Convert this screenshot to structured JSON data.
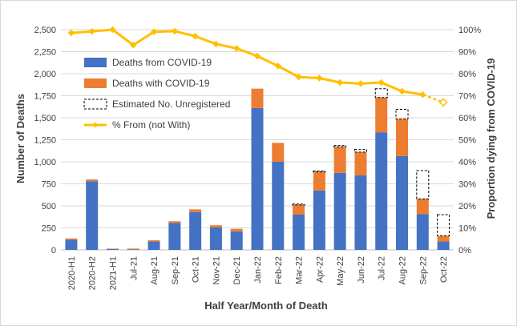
{
  "chart_data": {
    "type": "bar",
    "stacked": true,
    "xlabel": "Half Year/Month of Death",
    "ylabel": "Number of Deaths",
    "y2label": "Proportion dying from COVID-19",
    "ylim": [
      0,
      2500
    ],
    "yticks": [
      0,
      250,
      500,
      750,
      1000,
      1250,
      1500,
      1750,
      2000,
      2250,
      2500
    ],
    "ytick_labels": [
      "0",
      "250",
      "500",
      "750",
      "1,000",
      "1,250",
      "1,500",
      "1,750",
      "2,000",
      "2,250",
      "2,500"
    ],
    "y2lim": [
      0,
      100
    ],
    "y2ticks": [
      0,
      10,
      20,
      30,
      40,
      50,
      60,
      70,
      80,
      90,
      100
    ],
    "y2tick_labels": [
      "0%",
      "10%",
      "20%",
      "30%",
      "40%",
      "50%",
      "60%",
      "70%",
      "80%",
      "90%",
      "100%"
    ],
    "legend_position": "top-left",
    "categories": [
      "2020-H1",
      "2020-H2",
      "2021-H1",
      "Jul-21",
      "Aug-21",
      "Sep-21",
      "Oct-21",
      "Nov-21",
      "Dec-21",
      "Jan-22",
      "Feb-22",
      "Mar-22",
      "Apr-22",
      "May-22",
      "Jun-22",
      "Jul-22",
      "Aug-22",
      "Sep-22",
      "Oct-22"
    ],
    "series": [
      {
        "name": "Deaths from COVID-19",
        "kind": "bar",
        "color": "#4472c4",
        "values": [
          115,
          780,
          10,
          5,
          95,
          305,
          430,
          255,
          210,
          1610,
          1000,
          400,
          675,
          875,
          845,
          1335,
          1065,
          405,
          95
        ]
      },
      {
        "name": "Deaths with COVID-19",
        "kind": "bar",
        "color": "#ed7d31",
        "values": [
          15,
          20,
          5,
          10,
          15,
          20,
          30,
          25,
          30,
          220,
          215,
          110,
          210,
          295,
          265,
          395,
          420,
          175,
          65
        ]
      },
      {
        "name": "Estimated No. Unregistered",
        "kind": "bar-dashed",
        "color": "#000000",
        "values": [
          0,
          0,
          0,
          0,
          0,
          0,
          0,
          0,
          0,
          0,
          0,
          10,
          10,
          15,
          30,
          100,
          110,
          320,
          240
        ]
      },
      {
        "name": "% From (not With)",
        "kind": "line",
        "color": "#ffc000",
        "axis": "secondary",
        "values": [
          98.5,
          99.2,
          100,
          93,
          99,
          99.3,
          97,
          93.5,
          91.5,
          88,
          83.5,
          78.5,
          78,
          76,
          75.5,
          76,
          72,
          70.5,
          67
        ]
      }
    ]
  }
}
